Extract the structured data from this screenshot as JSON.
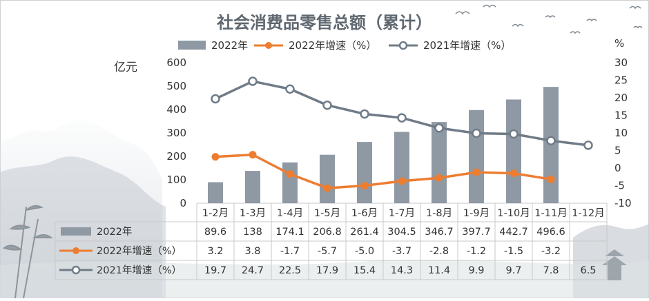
{
  "chart_data": {
    "type": "bar",
    "title": "社会消费品零售总额（累计）",
    "y_left_unit": "亿元",
    "y_right_unit": "%",
    "ylim_left": [
      0,
      600
    ],
    "yticks_left": [
      0,
      100,
      200,
      300,
      400,
      500,
      600
    ],
    "ylim_right": [
      -10,
      30
    ],
    "yticks_right": [
      -10,
      -5,
      0,
      5,
      10,
      15,
      20,
      25,
      30
    ],
    "categories": [
      "1-2月",
      "1-3月",
      "1-4月",
      "1-5月",
      "1-6月",
      "1-7月",
      "1-8月",
      "1-9月",
      "1-10月",
      "1-11月",
      "1-12月"
    ],
    "series": [
      {
        "name": "2022年",
        "type": "bar",
        "axis": "left",
        "color": "#8e99a4",
        "values": [
          89.6,
          138,
          174.1,
          206.8,
          261.4,
          304.5,
          346.7,
          397.7,
          442.7,
          496.6,
          null
        ],
        "labels": [
          "89.6",
          "138",
          "174.1",
          "206.8",
          "261.4",
          "304.5",
          "346.7",
          "397.7",
          "442.7",
          "496.6",
          ""
        ]
      },
      {
        "name": "2022年增速（%）",
        "type": "line",
        "axis": "right",
        "color": "#ed7d31",
        "values": [
          3.2,
          3.8,
          -1.7,
          -5.7,
          -5.0,
          -3.7,
          -2.8,
          -1.2,
          -1.5,
          -3.2,
          null
        ],
        "labels": [
          "3.2",
          "3.8",
          "-1.7",
          "-5.7",
          "-5.0",
          "-3.7",
          "-2.8",
          "-1.2",
          "-1.5",
          "-3.2",
          ""
        ]
      },
      {
        "name": "2021年增速（%）",
        "type": "line",
        "axis": "right",
        "color": "#6f7b87",
        "values": [
          19.7,
          24.7,
          22.5,
          17.9,
          15.4,
          14.3,
          11.4,
          9.9,
          9.7,
          7.8,
          6.5
        ],
        "labels": [
          "19.7",
          "24.7",
          "22.5",
          "17.9",
          "15.4",
          "14.3",
          "11.4",
          "9.9",
          "9.7",
          "7.8",
          "6.5"
        ]
      }
    ],
    "legend": "top",
    "data_table": true,
    "grid": false
  }
}
